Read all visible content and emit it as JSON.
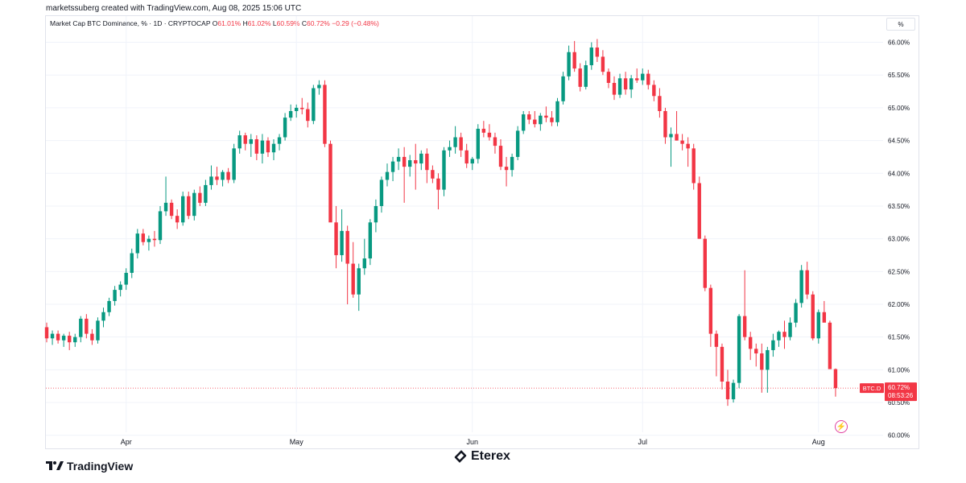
{
  "credit": "marketssuberg created with TradingView.com, Aug 08, 2025 15:06 UTC",
  "legend": {
    "title": "Market Cap BTC Dominance, % · 1D · CRYPTOCAP",
    "open_key": "O",
    "open": "61.01%",
    "high_key": "H",
    "high": "61.02%",
    "low_key": "L",
    "low": "60.59%",
    "close_key": "C",
    "close": "60.72%",
    "change": "−0.29 (−0.48%)"
  },
  "pct_button": "%",
  "price_tag": {
    "symbol": "BTC.D",
    "price": "60.72%",
    "countdown": "08:53:26"
  },
  "brand": {
    "tradingview": "TradingView",
    "eterex": "Eterex"
  },
  "colors": {
    "up": "#089981",
    "down": "#f23645",
    "grid": "#f0f3fa"
  },
  "chart_data": {
    "type": "candlestick",
    "ylim": [
      59.8,
      66.4
    ],
    "y_ticks": [
      60.0,
      60.5,
      61.0,
      61.5,
      62.0,
      62.5,
      63.0,
      63.5,
      64.0,
      64.5,
      65.0,
      65.5,
      66.0
    ],
    "y_tick_labels": [
      "60.00%",
      "60.50%",
      "61.00%",
      "61.50%",
      "62.00%",
      "62.50%",
      "63.00%",
      "63.50%",
      "64.00%",
      "64.50%",
      "65.00%",
      "65.50%",
      "66.00%"
    ],
    "x_labels": [
      {
        "label": "Apr",
        "index": 14
      },
      {
        "label": "May",
        "index": 44
      },
      {
        "label": "Jun",
        "index": 75
      },
      {
        "label": "Jul",
        "index": 105
      },
      {
        "label": "Aug",
        "index": 136
      }
    ],
    "last_price": 60.72,
    "candles": [
      [
        61.65,
        61.72,
        61.42,
        61.48
      ],
      [
        61.48,
        61.6,
        61.38,
        61.55
      ],
      [
        61.55,
        61.6,
        61.4,
        61.45
      ],
      [
        61.45,
        61.55,
        61.35,
        61.52
      ],
      [
        61.52,
        61.58,
        61.3,
        61.42
      ],
      [
        61.42,
        61.55,
        61.35,
        61.5
      ],
      [
        61.5,
        61.82,
        61.42,
        61.78
      ],
      [
        61.78,
        61.85,
        61.48,
        61.55
      ],
      [
        61.55,
        61.62,
        61.38,
        61.45
      ],
      [
        61.45,
        61.8,
        61.4,
        61.75
      ],
      [
        61.75,
        61.95,
        61.65,
        61.88
      ],
      [
        61.88,
        62.1,
        61.82,
        62.05
      ],
      [
        62.05,
        62.28,
        61.98,
        62.22
      ],
      [
        62.22,
        62.35,
        62.12,
        62.3
      ],
      [
        62.3,
        62.55,
        62.22,
        62.48
      ],
      [
        62.48,
        62.85,
        62.4,
        62.78
      ],
      [
        62.78,
        63.15,
        62.7,
        63.08
      ],
      [
        63.08,
        63.15,
        62.9,
        62.95
      ],
      [
        62.95,
        63.05,
        62.82,
        63.0
      ],
      [
        63.0,
        63.12,
        62.88,
        62.98
      ],
      [
        62.98,
        63.5,
        62.92,
        63.42
      ],
      [
        63.42,
        63.95,
        63.35,
        63.55
      ],
      [
        63.55,
        63.6,
        63.3,
        63.35
      ],
      [
        63.35,
        63.45,
        63.15,
        63.25
      ],
      [
        63.25,
        63.72,
        63.2,
        63.65
      ],
      [
        63.65,
        63.72,
        63.3,
        63.35
      ],
      [
        63.35,
        63.75,
        63.28,
        63.7
      ],
      [
        63.7,
        63.8,
        63.5,
        63.55
      ],
      [
        63.55,
        63.9,
        63.5,
        63.82
      ],
      [
        63.82,
        64.12,
        63.75,
        63.95
      ],
      [
        63.95,
        64.1,
        63.82,
        63.9
      ],
      [
        63.9,
        64.05,
        63.8,
        64.02
      ],
      [
        64.02,
        64.08,
        63.85,
        63.9
      ],
      [
        63.9,
        64.45,
        63.85,
        64.38
      ],
      [
        64.38,
        64.65,
        64.3,
        64.58
      ],
      [
        64.58,
        64.62,
        64.35,
        64.45
      ],
      [
        64.45,
        64.6,
        64.25,
        64.52
      ],
      [
        64.52,
        64.58,
        64.2,
        64.3
      ],
      [
        64.3,
        64.6,
        64.15,
        64.5
      ],
      [
        64.5,
        64.55,
        64.25,
        64.32
      ],
      [
        64.32,
        64.52,
        64.2,
        64.45
      ],
      [
        64.45,
        64.6,
        64.35,
        64.55
      ],
      [
        64.55,
        64.92,
        64.5,
        64.85
      ],
      [
        64.85,
        65.05,
        64.8,
        64.95
      ],
      [
        64.95,
        65.05,
        64.85,
        65.0
      ],
      [
        65.0,
        65.15,
        64.9,
        64.98
      ],
      [
        64.98,
        65.08,
        64.7,
        64.8
      ],
      [
        64.8,
        65.35,
        64.75,
        65.3
      ],
      [
        65.3,
        65.42,
        65.2,
        65.35
      ],
      [
        65.35,
        65.42,
        64.4,
        64.45
      ],
      [
        64.45,
        64.5,
        63.3,
        63.25
      ],
      [
        63.25,
        63.5,
        62.55,
        62.75
      ],
      [
        62.75,
        63.45,
        62.65,
        63.12
      ],
      [
        63.12,
        63.2,
        62.0,
        62.62
      ],
      [
        62.62,
        62.95,
        62.1,
        62.15
      ],
      [
        62.15,
        62.62,
        61.9,
        62.55
      ],
      [
        62.55,
        63.0,
        62.45,
        62.7
      ],
      [
        62.7,
        63.3,
        62.6,
        63.25
      ],
      [
        63.25,
        63.6,
        63.1,
        63.5
      ],
      [
        63.5,
        63.95,
        63.4,
        63.9
      ],
      [
        63.9,
        64.15,
        63.8,
        64.02
      ],
      [
        64.02,
        64.25,
        63.88,
        64.18
      ],
      [
        64.18,
        64.38,
        64.05,
        64.25
      ],
      [
        64.25,
        64.4,
        63.55,
        64.1
      ],
      [
        64.1,
        64.28,
        63.95,
        64.2
      ],
      [
        64.2,
        64.45,
        63.75,
        64.15
      ],
      [
        64.15,
        64.35,
        64.05,
        64.3
      ],
      [
        64.3,
        64.38,
        63.85,
        64.05
      ],
      [
        64.05,
        64.12,
        63.85,
        63.92
      ],
      [
        63.92,
        64.0,
        63.45,
        63.75
      ],
      [
        63.75,
        64.4,
        63.65,
        64.35
      ],
      [
        64.35,
        64.5,
        64.25,
        64.4
      ],
      [
        64.4,
        64.72,
        64.3,
        64.55
      ],
      [
        64.55,
        64.62,
        64.25,
        64.35
      ],
      [
        64.35,
        64.45,
        64.08,
        64.15
      ],
      [
        64.15,
        64.25,
        64.05,
        64.22
      ],
      [
        64.22,
        64.75,
        64.15,
        64.68
      ],
      [
        64.68,
        64.8,
        64.55,
        64.62
      ],
      [
        64.62,
        64.75,
        64.5,
        64.55
      ],
      [
        64.55,
        64.62,
        64.3,
        64.42
      ],
      [
        64.42,
        64.52,
        64.05,
        64.1
      ],
      [
        64.1,
        64.25,
        63.8,
        64.05
      ],
      [
        64.05,
        64.3,
        63.95,
        64.25
      ],
      [
        64.25,
        64.72,
        64.2,
        64.65
      ],
      [
        64.65,
        64.95,
        64.6,
        64.9
      ],
      [
        64.9,
        64.95,
        64.75,
        64.82
      ],
      [
        64.82,
        64.95,
        64.7,
        64.75
      ],
      [
        64.75,
        64.92,
        64.65,
        64.88
      ],
      [
        64.88,
        65.02,
        64.78,
        64.85
      ],
      [
        64.85,
        64.95,
        64.72,
        64.78
      ],
      [
        64.78,
        65.15,
        64.72,
        65.1
      ],
      [
        65.1,
        65.55,
        65.05,
        65.48
      ],
      [
        65.48,
        65.95,
        65.42,
        65.85
      ],
      [
        65.85,
        66.02,
        65.55,
        65.6
      ],
      [
        65.6,
        65.68,
        65.25,
        65.32
      ],
      [
        65.32,
        65.72,
        65.28,
        65.65
      ],
      [
        65.65,
        66.0,
        65.58,
        65.92
      ],
      [
        65.92,
        66.05,
        65.7,
        65.78
      ],
      [
        65.78,
        65.88,
        65.5,
        65.55
      ],
      [
        65.55,
        65.6,
        65.3,
        65.38
      ],
      [
        65.38,
        65.48,
        65.12,
        65.2
      ],
      [
        65.2,
        65.52,
        65.15,
        65.45
      ],
      [
        65.45,
        65.55,
        65.2,
        65.28
      ],
      [
        65.28,
        65.5,
        65.15,
        65.45
      ],
      [
        65.45,
        65.6,
        65.38,
        65.42
      ],
      [
        65.42,
        65.6,
        65.35,
        65.52
      ],
      [
        65.52,
        65.58,
        65.28,
        65.35
      ],
      [
        65.35,
        65.42,
        65.1,
        65.18
      ],
      [
        65.18,
        65.3,
        64.85,
        64.95
      ],
      [
        64.95,
        65.0,
        64.45,
        64.55
      ],
      [
        64.55,
        64.7,
        64.1,
        64.6
      ],
      [
        64.6,
        64.95,
        64.5,
        64.5
      ],
      [
        64.5,
        64.6,
        64.35,
        64.45
      ],
      [
        64.45,
        64.55,
        64.1,
        64.38
      ],
      [
        64.38,
        64.45,
        63.75,
        63.85
      ],
      [
        63.85,
        63.95,
        63.0,
        63.0
      ],
      [
        63.0,
        63.05,
        62.2,
        62.25
      ],
      [
        62.25,
        62.3,
        61.35,
        61.55
      ],
      [
        61.55,
        61.6,
        60.9,
        61.35
      ],
      [
        61.35,
        61.4,
        60.7,
        60.82
      ],
      [
        60.82,
        61.0,
        60.45,
        60.55
      ],
      [
        60.55,
        60.85,
        60.5,
        60.8
      ],
      [
        60.8,
        61.85,
        60.72,
        61.82
      ],
      [
        61.82,
        62.52,
        61.45,
        61.5
      ],
      [
        61.5,
        61.58,
        61.15,
        61.32
      ],
      [
        61.32,
        61.4,
        61.05,
        61.25
      ],
      [
        61.25,
        61.4,
        60.65,
        61.0
      ],
      [
        61.0,
        61.35,
        60.65,
        61.3
      ],
      [
        61.3,
        61.55,
        61.2,
        61.45
      ],
      [
        61.45,
        61.6,
        61.35,
        61.58
      ],
      [
        61.58,
        61.75,
        61.32,
        61.5
      ],
      [
        61.5,
        61.8,
        61.45,
        61.72
      ],
      [
        61.72,
        62.08,
        61.65,
        62.02
      ],
      [
        62.02,
        62.6,
        61.95,
        62.52
      ],
      [
        62.52,
        62.65,
        62.08,
        62.15
      ],
      [
        62.15,
        62.2,
        61.45,
        61.48
      ],
      [
        61.48,
        61.92,
        61.4,
        61.88
      ],
      [
        61.88,
        62.05,
        61.75,
        61.72
      ],
      [
        61.72,
        61.75,
        61.02,
        61.01
      ],
      [
        61.01,
        61.02,
        60.59,
        60.72
      ]
    ]
  }
}
